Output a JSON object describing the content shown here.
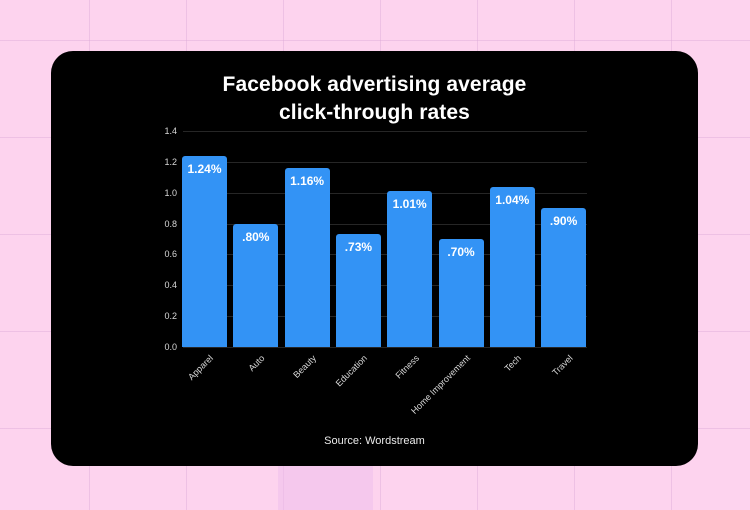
{
  "chart_data": {
    "type": "bar",
    "title": "Facebook advertising average click-through rates",
    "title_lines": [
      "Facebook advertising average",
      "click-through rates"
    ],
    "categories": [
      "Apparel",
      "Auto",
      "Beauty",
      "Education",
      "Fitness",
      "Home Improvement",
      "Tech",
      "Travel"
    ],
    "values": [
      1.24,
      0.8,
      1.16,
      0.73,
      1.01,
      0.7,
      1.04,
      0.9
    ],
    "data_labels": [
      "1.24%",
      ".80%",
      "1.16%",
      ".73%",
      "1.01%",
      ".70%",
      "1.04%",
      ".90%"
    ],
    "xlabel": "",
    "ylabel": "",
    "ylim": [
      0,
      1.4
    ],
    "yticks": [
      "0.0",
      "0.2",
      "0.4",
      "0.6",
      "0.8",
      "1.0",
      "1.2",
      "1.4"
    ],
    "grid": true,
    "legend": null,
    "annotation": "Source: Wordstream",
    "bar_color": "#3393f5",
    "background_color": "#000000"
  },
  "page": {
    "background_color": "#fdd3ee"
  }
}
